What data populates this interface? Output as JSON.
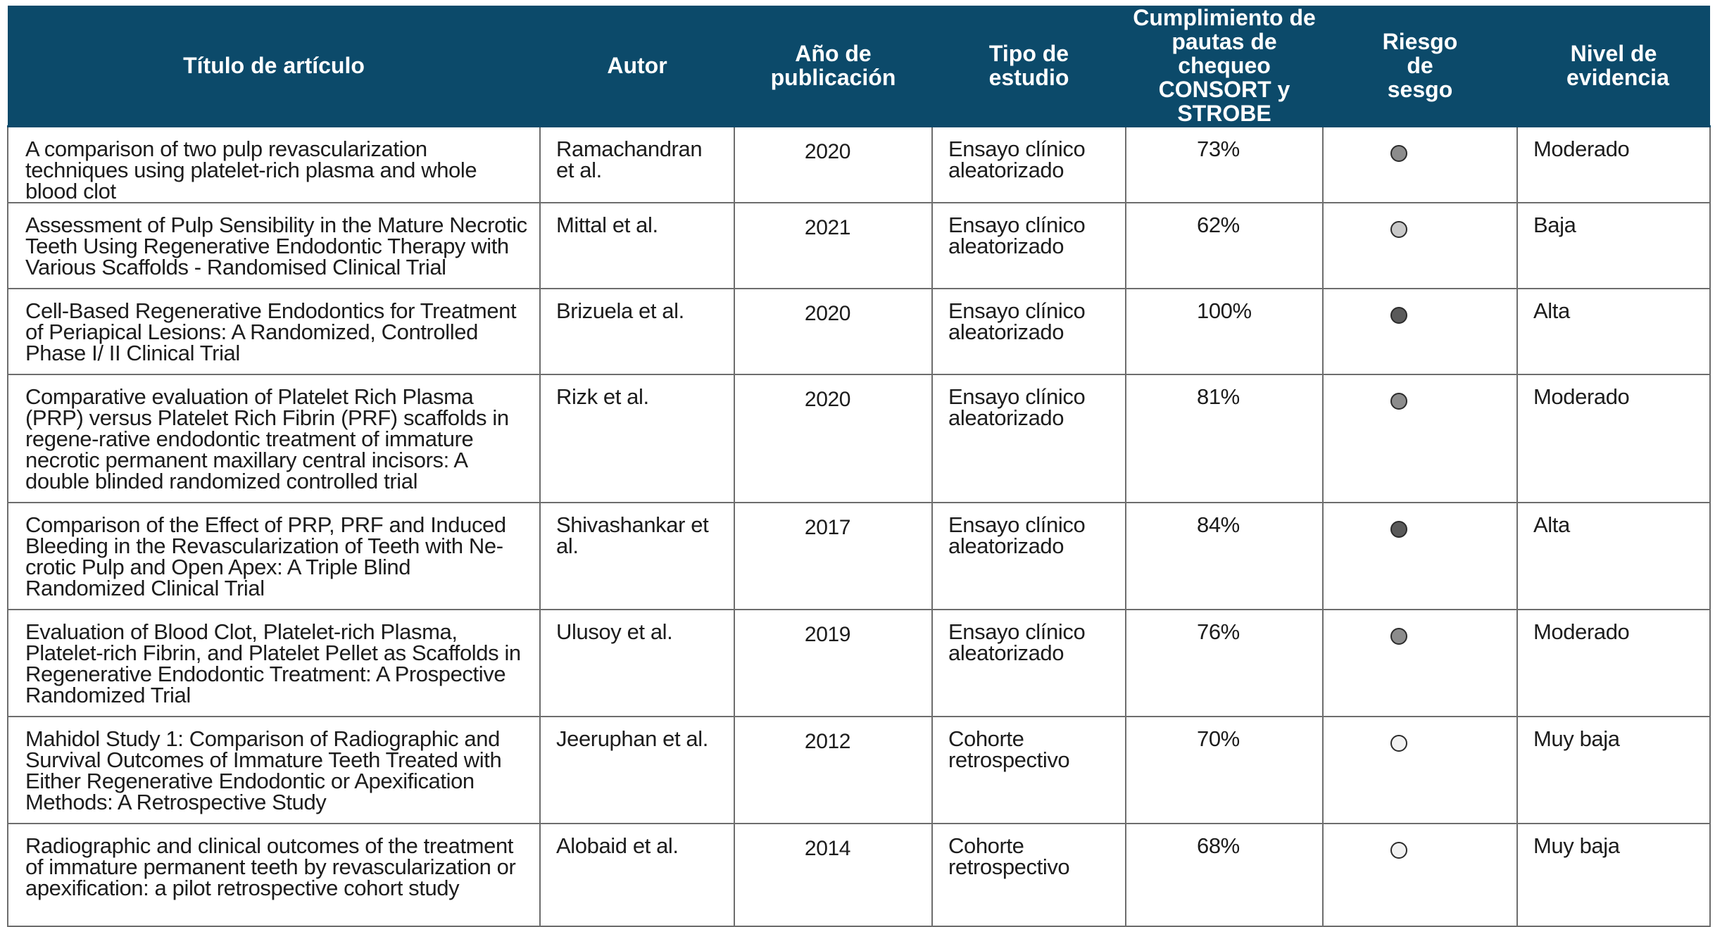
{
  "headers": {
    "title": "Título de artículo",
    "author": "Autor",
    "year": "Año de publicación",
    "type": "Tipo de estudio",
    "compliance": "Cumplimiento de pautas de chequeo CONSORT y STROBE",
    "risk": "Riesgo de sesgo",
    "level": "Nivel de evidencia"
  },
  "risk_colors": {
    "moderate": "#8c8c8c",
    "low": "#c9c9c9",
    "high": "#5a5a5a",
    "very_low": "#f2f2f2"
  },
  "rows": [
    {
      "title": "A comparison of two pulp revascularization techniques using platelet-rich plasma and whole blood clot",
      "author": "Ramachandran et al.",
      "year": "2020",
      "type": "Ensayo clínico aleatorizado",
      "compliance": "73%",
      "risk_color": "#8c8c8c",
      "level": "Moderado"
    },
    {
      "title": "Assessment of Pulp Sensibility in the Mature Necrotic Teeth Using Regenerative Endodontic Therapy with Various Scaffolds - Randomised Clinical Trial",
      "author": "Mittal et al.",
      "year": "2021",
      "type": "Ensayo clínico aleatorizado",
      "compliance": "62%",
      "risk_color": "#c9c9c9",
      "level": "Baja"
    },
    {
      "title": "Cell-Based Regenerative Endodontics for Treatment of Periapical Lesions: A Randomized, Controlled Phase I/ II Clinical Trial",
      "author": "Brizuela et al.",
      "year": "2020",
      "type": "Ensayo clínico aleatorizado",
      "compliance": "100%",
      "risk_color": "#5a5a5a",
      "level": "Alta"
    },
    {
      "title": "Comparative evaluation of Platelet Rich Plasma (PRP) versus Platelet Rich Fibrin (PRF) scaffolds in regene-rative endodontic treatment of immature necrotic permanent maxillary central incisors: A double blinded randomized controlled trial",
      "author": "Rizk et al.",
      "year": "2020",
      "type": "Ensayo clínico aleatorizado",
      "compliance": "81%",
      "risk_color": "#8c8c8c",
      "level": "Moderado"
    },
    {
      "title": "Comparison of the Effect of PRP, PRF and Induced Bleeding in the Revascularization of Teeth with Ne-crotic Pulp and Open Apex: A Triple Blind Randomized Clinical Trial",
      "author": "Shivashankar et al.",
      "year": "2017",
      "type": "Ensayo clínico aleatorizado",
      "compliance": "84%",
      "risk_color": "#5a5a5a",
      "level": "Alta"
    },
    {
      "title": "Evaluation of Blood Clot, Platelet-rich Plasma, Platelet-rich Fibrin, and Platelet Pellet as Scaffolds in Regenerative Endodontic Treatment: A Prospective Randomized Trial",
      "author": "Ulusoy et al.",
      "year": "2019",
      "type": "Ensayo clínico aleatorizado",
      "compliance": "76%",
      "risk_color": "#8c8c8c",
      "level": "Moderado"
    },
    {
      "title": "Mahidol Study 1: Comparison of Radiographic and Survival Outcomes of Immature Teeth Treated with Either Regenerative Endodontic or Apexification Methods: A Retrospective Study",
      "author": "Jeeruphan et al.",
      "year": "2012",
      "type": "Cohorte retrospectivo",
      "compliance": "70%",
      "risk_color": "#f2f2f2",
      "level": "Muy baja"
    },
    {
      "title": "Radiographic and clinical outcomes of the treatment of immature permanent teeth by revascularization or apexification: a pilot retrospective cohort study",
      "author": "Alobaid et al.",
      "year": "2014",
      "type": "Cohorte retrospectivo",
      "compliance": "68%",
      "risk_color": "#f2f2f2",
      "level": "Muy baja"
    }
  ]
}
